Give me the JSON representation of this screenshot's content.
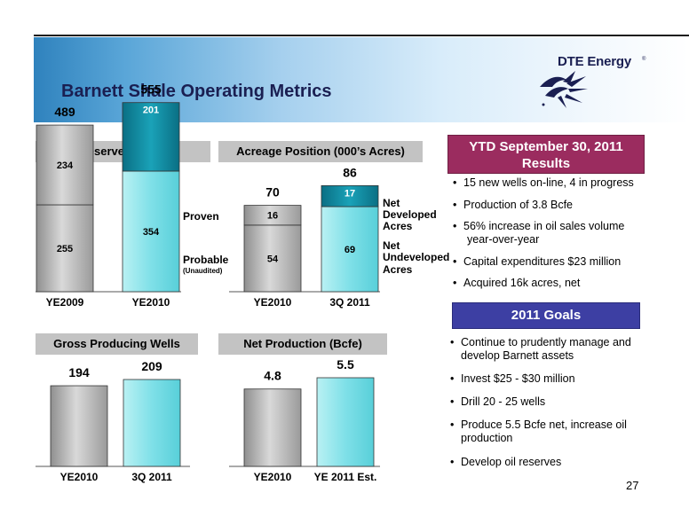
{
  "slide": {
    "title": "Barnett Shale Operating Metrics",
    "logo": "DTE Energy",
    "page_number": "27",
    "colors": {
      "header_blue": "#2f82bd",
      "ytd_box": "#9b2c5f",
      "goals_box": "#3d3fa3",
      "panel_gray": "#c3c3c3",
      "bar_gray": "#b8b8b8",
      "bar_cyan": "#7fe0e8",
      "bar_teal": "#0e8aa0"
    }
  },
  "ytd_box": {
    "line1": "YTD September 30, 2011",
    "line2": "Results"
  },
  "results": [
    "15 new wells on-line, 4 in progress",
    "Production of 3.8 Bcfe",
    "56% increase in oil sales volume",
    "year-over-year",
    "Capital expenditures $23 million",
    "Acquired 16k acres, net"
  ],
  "goals_box": {
    "title": "2011 Goals"
  },
  "goals": [
    "Continue to prudently manage and",
    "develop Barnett assets",
    "Invest $25 - $30 million",
    "Drill  20 - 25 wells",
    "Produce 5.5 Bcfe net, increase oil",
    "production",
    "Develop oil reserves"
  ],
  "chart_data": [
    {
      "type": "bar",
      "title": "Reserves (Bcfe)",
      "stacked": true,
      "categories": [
        "YE2009",
        "YE2010"
      ],
      "series": [
        {
          "name": "Probable",
          "values": [
            255,
            354
          ]
        },
        {
          "name": "Proven",
          "values": [
            234,
            201
          ]
        }
      ],
      "totals": [
        489,
        555
      ],
      "note": "(Unaudited)"
    },
    {
      "type": "bar",
      "title": "Acreage Position (000’s Acres)",
      "stacked": true,
      "categories": [
        "YE2010",
        "3Q 2011"
      ],
      "series": [
        {
          "name": "Net Undeveloped Acres",
          "values": [
            54,
            69
          ]
        },
        {
          "name": "Net Developed Acres",
          "values": [
            16,
            17
          ]
        }
      ],
      "totals": [
        70,
        86
      ],
      "legend_labels": {
        "developed": [
          "Net",
          "Developed",
          "Acres"
        ],
        "undeveloped": [
          "Net",
          "Undeveloped",
          "Acres"
        ]
      }
    },
    {
      "type": "bar",
      "title": "Gross Producing Wells",
      "categories": [
        "YE2010",
        "3Q 2011"
      ],
      "values": [
        194,
        209
      ]
    },
    {
      "type": "bar",
      "title": "Net Production (Bcfe)",
      "categories": [
        "YE2010",
        "YE 2011 Est."
      ],
      "values": [
        4.8,
        5.5
      ]
    }
  ]
}
